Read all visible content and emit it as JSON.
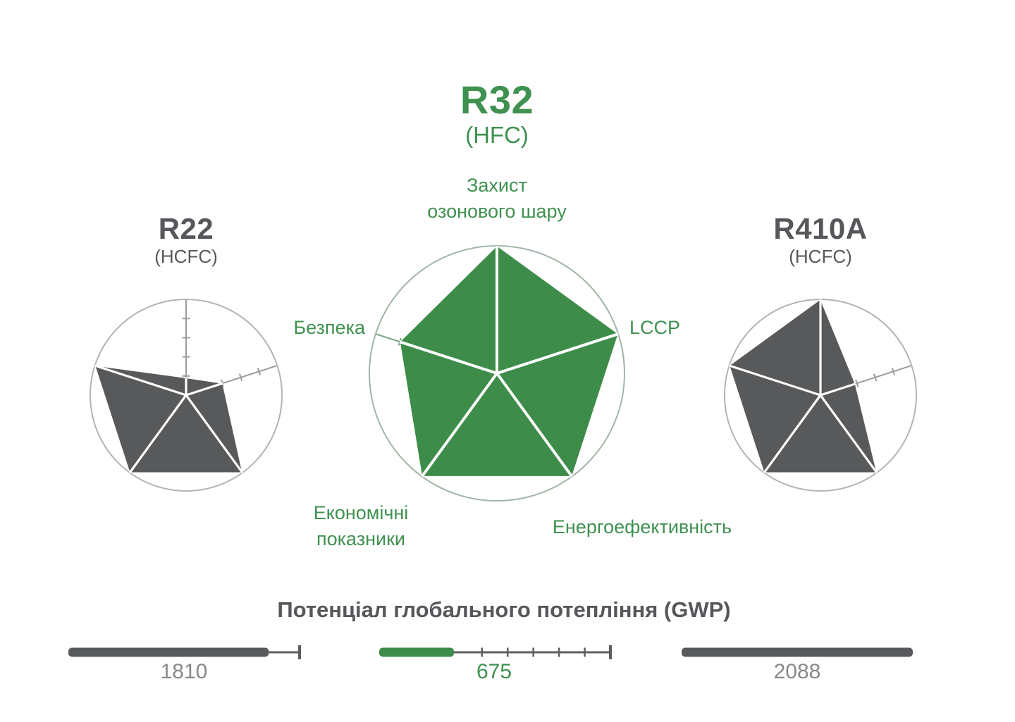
{
  "labels": {
    "ozone": "Захист\nозонового шару",
    "lccp": "LCCP",
    "energy": "Енергоефективність",
    "economic": "Економічні\nпоказники",
    "safety": "Безпека"
  },
  "colors": {
    "green_fill": "#3e8c4a",
    "green_text": "#3f9150",
    "dark_gray_fill": "#58595b",
    "title_gray": "#55575a",
    "value_gray": "#87898b",
    "axis_gray": "#9a9da0",
    "axis_green": "#74a47e",
    "scale_dark": "#5c5e60",
    "white": "#ffffff"
  },
  "chart_data": [
    {
      "type": "radar",
      "title": "R22",
      "subtitle": "(HCFC)",
      "axes": [
        "Захист озонового шару",
        "LCCP",
        "Енергоефективність",
        "Економічні показники",
        "Безпека"
      ],
      "values": [
        0.18,
        0.4,
        1.0,
        1.0,
        1.0
      ],
      "value_range": [
        0,
        1
      ],
      "tick_step": 0.2,
      "fill_color": "#58595b",
      "axis_color": "#9a9da0",
      "circle_color": "#afb6af"
    },
    {
      "type": "radar",
      "title": "R32",
      "subtitle": "(HFC)",
      "axes": [
        "Захист озонового шару",
        "LCCP",
        "Енергоефективність",
        "Економічні показники",
        "Безпека"
      ],
      "values": [
        1.0,
        1.0,
        1.0,
        1.0,
        0.8
      ],
      "value_range": [
        0,
        1
      ],
      "tick_step": 0.2,
      "fill_color": "#3e8c4a",
      "axis_color": "#74a47e",
      "circle_color": "#a2b6a5"
    },
    {
      "type": "radar",
      "title": "R410A",
      "subtitle": "(HCFC)",
      "axes": [
        "Захист озонового шару",
        "LCCP",
        "Енергоефективність",
        "Економічні показники",
        "Безпека"
      ],
      "values": [
        1.0,
        0.38,
        1.0,
        1.0,
        1.0
      ],
      "value_range": [
        0,
        1
      ],
      "tick_step": 0.2,
      "fill_color": "#58595b",
      "axis_color": "#9a9da0",
      "circle_color": "#afb6af"
    },
    {
      "type": "bar",
      "title": "Потенціал глобального потепління (GWP)",
      "categories": [
        "R22",
        "R32",
        "R410A"
      ],
      "values": [
        1810,
        675,
        2088
      ],
      "max": 2088,
      "bar_colors": [
        "#58595b",
        "#3e8c4a",
        "#58595b"
      ],
      "value_label_colors": [
        "#87898b",
        "#3f9150",
        "#87898b"
      ]
    }
  ]
}
